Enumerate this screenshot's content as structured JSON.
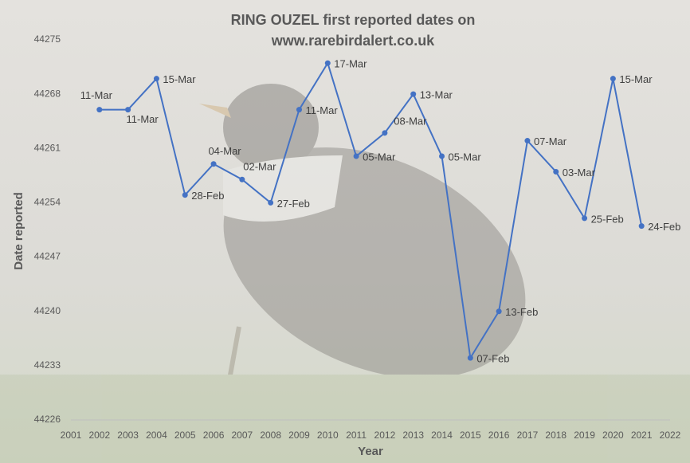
{
  "chart_data": {
    "type": "line",
    "title": [
      "RING OUZEL first reported dates on",
      "www.rarebirdalert.co.uk"
    ],
    "x_label": "Year",
    "y_label": "Date reported",
    "x": [
      2002,
      2003,
      2004,
      2005,
      2006,
      2007,
      2008,
      2009,
      2010,
      2011,
      2012,
      2013,
      2014,
      2015,
      2016,
      2017,
      2018,
      2019,
      2020,
      2021
    ],
    "series": [
      {
        "color": "#4472c4",
        "values": [
          44266,
          44266,
          44270,
          44255,
          44259,
          44257,
          44254,
          44266,
          44272,
          44260,
          44263,
          44268,
          44260,
          44234,
          44240,
          44262,
          44258,
          44252,
          44270,
          44251
        ],
        "value_labels": [
          "11-Mar",
          "11-Mar",
          "15-Mar",
          "28-Feb",
          "04-Mar",
          "02-Mar",
          "27-Feb",
          "11-Mar",
          "17-Mar",
          "05-Mar",
          "08-Mar",
          "13-Mar",
          "05-Mar",
          "07-Feb",
          "13-Feb",
          "07-Mar",
          "03-Mar",
          "25-Feb",
          "15-Mar",
          "24-Feb"
        ]
      }
    ],
    "xlim": [
      2001,
      2022
    ],
    "xticks": [
      2001,
      2002,
      2003,
      2004,
      2005,
      2006,
      2007,
      2008,
      2009,
      2010,
      2011,
      2012,
      2013,
      2014,
      2015,
      2016,
      2017,
      2018,
      2019,
      2020,
      2021,
      2022
    ],
    "ylim": [
      44226,
      44275
    ],
    "yticks": [
      44226,
      44233,
      44240,
      44247,
      44254,
      44261,
      44268,
      44275
    ]
  }
}
